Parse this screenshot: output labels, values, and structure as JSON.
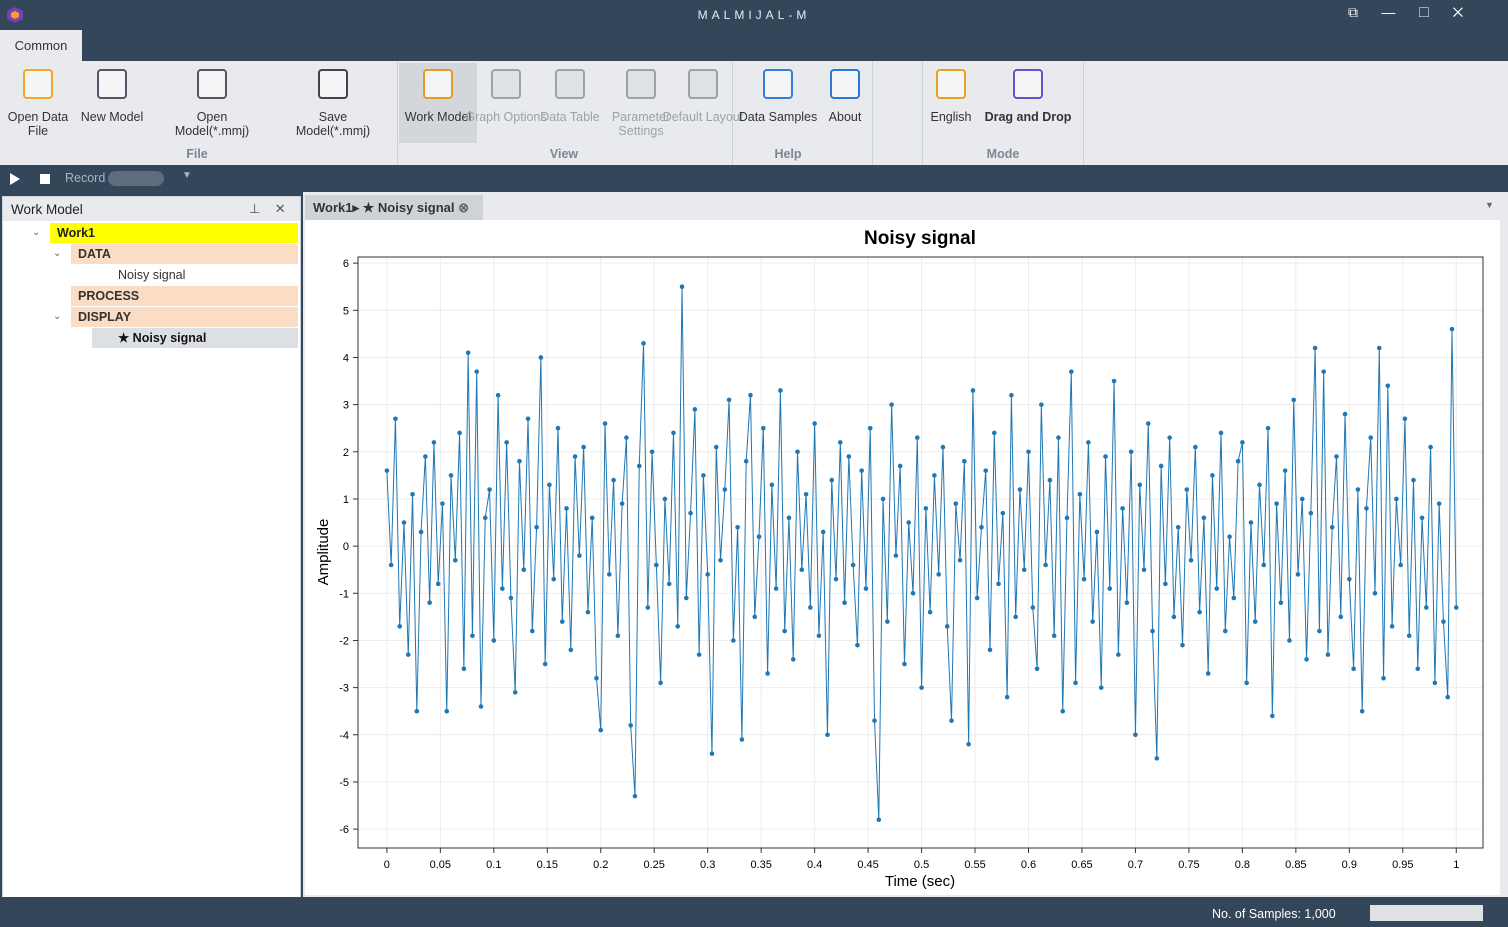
{
  "title_bar": {
    "title": "MALMIJAL-M"
  },
  "ribbon": {
    "tab": "Common",
    "groups": [
      {
        "label": "File",
        "buttons": [
          "Open Data File",
          "New Model",
          "Open Model(*.mmj)",
          "Save Model(*.mmj)"
        ]
      },
      {
        "label": "View",
        "buttons": [
          "Work Model",
          "Graph Options",
          "Data Table",
          "Parameter Settings",
          "Default Layout"
        ]
      },
      {
        "label": "Help",
        "buttons": [
          "Data Samples",
          "About"
        ]
      },
      {
        "label": "Mode",
        "buttons": [
          "English",
          "Drag and Drop"
        ]
      }
    ]
  },
  "toolbar": {
    "record": "Record"
  },
  "work_model": {
    "title": "Work Model",
    "tree": [
      "Work1",
      "DATA",
      "Noisy signal",
      "PROCESS",
      "DISPLAY",
      "★ Noisy signal"
    ]
  },
  "document_tab": "Work1▸ ★ Noisy signal",
  "status": {
    "samples": "No. of Samples: 1,000"
  },
  "chart_data": {
    "type": "line",
    "title": "Noisy signal",
    "x_label": "Time (sec)",
    "y_label": "Amplitude",
    "xlim": [
      -0.027,
      1.025
    ],
    "ylim": [
      -6.4,
      6.13
    ],
    "xticks": [
      0,
      0.05,
      0.1,
      0.15,
      0.2,
      0.25,
      0.3,
      0.35,
      0.4,
      0.45,
      0.5,
      0.55,
      0.6,
      0.65,
      0.7,
      0.75,
      0.8,
      0.85,
      0.9,
      0.95,
      1
    ],
    "yticks": [
      -6,
      -5,
      -4,
      -3,
      -2,
      -1,
      0,
      1,
      2,
      3,
      4,
      5,
      6
    ],
    "grid": true,
    "x": [
      0,
      0.004,
      0.008,
      0.012,
      0.016,
      0.02,
      0.024,
      0.028,
      0.032,
      0.036,
      0.04,
      0.044,
      0.048,
      0.052,
      0.056,
      0.06,
      0.064,
      0.068,
      0.072,
      0.076,
      0.08,
      0.084,
      0.088,
      0.092,
      0.096,
      0.1,
      0.104,
      0.108,
      0.112,
      0.116,
      0.12,
      0.124,
      0.128,
      0.132,
      0.136,
      0.14,
      0.144,
      0.148,
      0.152,
      0.156,
      0.16,
      0.164,
      0.168,
      0.172,
      0.176,
      0.18,
      0.184,
      0.188,
      0.192,
      0.196,
      0.2,
      0.204,
      0.208,
      0.212,
      0.216,
      0.22,
      0.224,
      0.228,
      0.232,
      0.236,
      0.24,
      0.244,
      0.248,
      0.252,
      0.256,
      0.26,
      0.264,
      0.268,
      0.272,
      0.276,
      0.28,
      0.284,
      0.288,
      0.292,
      0.296,
      0.3,
      0.304,
      0.308,
      0.312,
      0.316,
      0.32,
      0.324,
      0.328,
      0.332,
      0.336,
      0.34,
      0.344,
      0.348,
      0.352,
      0.356,
      0.36,
      0.364,
      0.368,
      0.372,
      0.376,
      0.38,
      0.384,
      0.388,
      0.392,
      0.396,
      0.4,
      0.404,
      0.408,
      0.412,
      0.416,
      0.42,
      0.424,
      0.428,
      0.432,
      0.436,
      0.44,
      0.444,
      0.448,
      0.452,
      0.456,
      0.46,
      0.464,
      0.468,
      0.472,
      0.476,
      0.48,
      0.484,
      0.488,
      0.492,
      0.496,
      0.5,
      0.504,
      0.508,
      0.512,
      0.516,
      0.52,
      0.524,
      0.528,
      0.532,
      0.536,
      0.54,
      0.544,
      0.548,
      0.552,
      0.556,
      0.56,
      0.564,
      0.568,
      0.572,
      0.576,
      0.58,
      0.584,
      0.588,
      0.592,
      0.596,
      0.6,
      0.604,
      0.608,
      0.612,
      0.616,
      0.62,
      0.624,
      0.628,
      0.632,
      0.636,
      0.64,
      0.644,
      0.648,
      0.652,
      0.656,
      0.66,
      0.664,
      0.668,
      0.672,
      0.676,
      0.68,
      0.684,
      0.688,
      0.692,
      0.696,
      0.7,
      0.704,
      0.708,
      0.712,
      0.716,
      0.72,
      0.724,
      0.728,
      0.732,
      0.736,
      0.74,
      0.744,
      0.748,
      0.752,
      0.756,
      0.76,
      0.764,
      0.768,
      0.772,
      0.776,
      0.78,
      0.784,
      0.788,
      0.792,
      0.796,
      0.8,
      0.804,
      0.808,
      0.812,
      0.816,
      0.82,
      0.824,
      0.828,
      0.832,
      0.836,
      0.84,
      0.844,
      0.848,
      0.852,
      0.856,
      0.86,
      0.864,
      0.868,
      0.872,
      0.876,
      0.88,
      0.884,
      0.888,
      0.892,
      0.896,
      0.9,
      0.904,
      0.908,
      0.912,
      0.916,
      0.92,
      0.924,
      0.928,
      0.932,
      0.936,
      0.94,
      0.944,
      0.948,
      0.952,
      0.956,
      0.96,
      0.964,
      0.968,
      0.972,
      0.976,
      0.98,
      0.984,
      0.988,
      0.992,
      0.996,
      1
    ],
    "series": [
      {
        "name": "Noisy signal",
        "color": "#1f77b4",
        "values": [
          1.6,
          -0.4,
          2.7,
          -1.7,
          0.5,
          -2.3,
          1.1,
          -3.5,
          0.3,
          1.9,
          -1.2,
          2.2,
          -0.8,
          0.9,
          -3.5,
          1.5,
          -0.3,
          2.4,
          -2.6,
          4.1,
          -1.9,
          3.7,
          -3.4,
          0.6,
          1.2,
          -2.0,
          3.2,
          -0.9,
          2.2,
          -1.1,
          -3.1,
          1.8,
          -0.5,
          2.7,
          -1.8,
          0.4,
          4.0,
          -2.5,
          1.3,
          -0.7,
          2.5,
          -1.6,
          0.8,
          -2.2,
          1.9,
          -0.2,
          2.1,
          -1.4,
          0.6,
          -2.8,
          -3.9,
          2.6,
          -0.6,
          1.4,
          -1.9,
          0.9,
          2.3,
          -3.8,
          -5.3,
          1.7,
          4.3,
          -1.3,
          2.0,
          -0.4,
          -2.9,
          1.0,
          -0.8,
          2.4,
          -1.7,
          5.5,
          -1.1,
          0.7,
          2.9,
          -2.3,
          1.5,
          -0.6,
          -4.4,
          2.1,
          -0.3,
          1.2,
          3.1,
          -2.0,
          0.4,
          -4.1,
          1.8,
          3.2,
          -1.5,
          0.2,
          2.5,
          -2.7,
          1.3,
          -0.9,
          3.3,
          -1.8,
          0.6,
          -2.4,
          2.0,
          -0.5,
          1.1,
          -1.3,
          2.6,
          -1.9,
          0.3,
          -4.0,
          1.4,
          -0.7,
          2.2,
          -1.2,
          1.9,
          -0.4,
          -2.1,
          1.6,
          -0.9,
          2.5,
          -3.7,
          -5.8,
          1.0,
          -1.6,
          3.0,
          -0.2,
          1.7,
          -2.5,
          0.5,
          -1.0,
          2.3,
          -3.0,
          0.8,
          -1.4,
          1.5,
          -0.6,
          2.1,
          -1.7,
          -3.7,
          0.9,
          -0.3,
          1.8,
          -4.2,
          3.3,
          -1.1,
          0.4,
          1.6,
          -2.2,
          2.4,
          -0.8,
          0.7,
          -3.2,
          3.2,
          -1.5,
          1.2,
          -0.5,
          2.0,
          -1.3,
          -2.6,
          3.0,
          -0.4,
          1.4,
          -1.9,
          2.3,
          -3.5,
          0.6,
          3.7,
          -2.9,
          1.1,
          -0.7,
          2.2,
          -1.6,
          0.3,
          -3.0,
          1.9,
          -0.9,
          3.5,
          -2.3,
          0.8,
          -1.2,
          2.0,
          -4.0,
          1.3,
          -0.5,
          2.6,
          -1.8,
          -4.5,
          1.7,
          -0.8,
          2.3,
          -1.5,
          0.4,
          -2.1,
          1.2,
          -0.3,
          2.1,
          -1.4,
          0.6,
          -2.7,
          1.5,
          -0.9,
          2.4,
          -1.8,
          0.2,
          -1.1,
          1.8,
          2.2,
          -2.9,
          0.5,
          -1.6,
          1.3,
          -0.4,
          2.5,
          -3.6,
          0.9,
          -1.2,
          1.6,
          -2.0,
          3.1,
          -0.6,
          1.0,
          -2.4,
          0.7,
          4.2,
          -1.8,
          3.7,
          -2.3,
          0.4,
          1.9,
          -1.5,
          2.8,
          -0.7,
          -2.6,
          1.2,
          -3.5,
          0.8,
          2.3,
          -1.0,
          4.2,
          -2.8,
          3.4,
          -1.7,
          1.0,
          -0.4,
          2.7,
          -1.9,
          1.4,
          -2.6,
          0.6,
          -1.3,
          2.1,
          -2.9,
          0.9,
          -1.6,
          -3.2,
          4.6,
          -1.3
        ]
      }
    ]
  }
}
